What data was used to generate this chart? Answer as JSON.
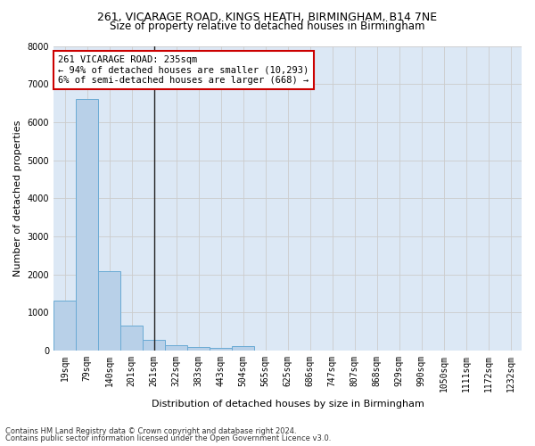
{
  "title1": "261, VICARAGE ROAD, KINGS HEATH, BIRMINGHAM, B14 7NE",
  "title2": "Size of property relative to detached houses in Birmingham",
  "xlabel": "Distribution of detached houses by size in Birmingham",
  "ylabel": "Number of detached properties",
  "categories": [
    "19sqm",
    "79sqm",
    "140sqm",
    "201sqm",
    "261sqm",
    "322sqm",
    "383sqm",
    "443sqm",
    "504sqm",
    "565sqm",
    "625sqm",
    "686sqm",
    "747sqm",
    "807sqm",
    "868sqm",
    "929sqm",
    "990sqm",
    "1050sqm",
    "1111sqm",
    "1172sqm",
    "1232sqm"
  ],
  "values": [
    1310,
    6600,
    2080,
    660,
    290,
    140,
    100,
    80,
    110,
    0,
    0,
    0,
    0,
    0,
    0,
    0,
    0,
    0,
    0,
    0,
    0
  ],
  "bar_color": "#b8d0e8",
  "bar_edge_color": "#6aaad4",
  "highlight_index": 4,
  "highlight_line_color": "#222222",
  "annotation_text": "261 VICARAGE ROAD: 235sqm\n← 94% of detached houses are smaller (10,293)\n6% of semi-detached houses are larger (668) →",
  "annotation_box_color": "#ffffff",
  "annotation_box_edge_color": "#cc0000",
  "ylim": [
    0,
    8000
  ],
  "yticks": [
    0,
    1000,
    2000,
    3000,
    4000,
    5000,
    6000,
    7000,
    8000
  ],
  "grid_color": "#cccccc",
  "bg_color": "#dce8f5",
  "footer1": "Contains HM Land Registry data © Crown copyright and database right 2024.",
  "footer2": "Contains public sector information licensed under the Open Government Licence v3.0.",
  "title1_fontsize": 9,
  "title2_fontsize": 8.5,
  "axis_label_fontsize": 8,
  "xlabel_fontsize": 8,
  "tick_fontsize": 7,
  "footer_fontsize": 6,
  "annotation_fontsize": 7.5
}
